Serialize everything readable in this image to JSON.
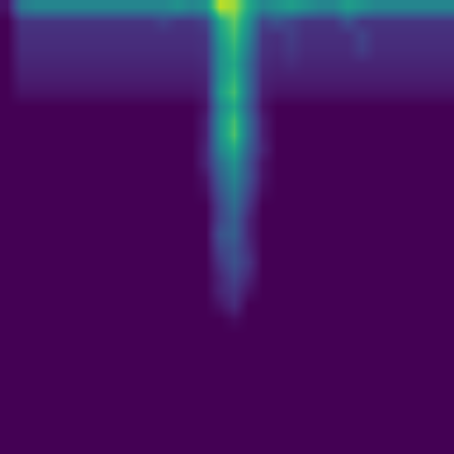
{
  "chart_data": {
    "type": "heatmap",
    "color": "Viridis",
    "zlim": [
      0,
      1
    ],
    "tick_labels": false,
    "z": [
      [
        0.05,
        0.4,
        0.45,
        0.45,
        0.45,
        0.45,
        0.45,
        0.45,
        0.45,
        0.45,
        0.45,
        0.45,
        0.5,
        0.45,
        0.5,
        0.9,
        0.85,
        0.6,
        0.45,
        0.5,
        0.55,
        0.5,
        0.45,
        0.45,
        0.55,
        0.5,
        0.45,
        0.45,
        0.45,
        0.45,
        0.45,
        0.45
      ],
      [
        0,
        0.15,
        0.15,
        0.15,
        0.15,
        0.15,
        0.15,
        0.15,
        0.15,
        0.15,
        0.15,
        0.2,
        0.15,
        0.15,
        0.2,
        0.6,
        0.75,
        0.5,
        0.2,
        0.25,
        0.2,
        0.15,
        0.15,
        0.15,
        0.25,
        0.15,
        0.15,
        0.15,
        0.15,
        0.15,
        0.15,
        0.15
      ],
      [
        0,
        0.13,
        0.13,
        0.13,
        0.13,
        0.13,
        0.13,
        0.13,
        0.13,
        0.13,
        0.13,
        0.13,
        0.13,
        0.13,
        0.15,
        0.55,
        0.7,
        0.45,
        0.15,
        0.13,
        0.18,
        0.13,
        0.13,
        0.13,
        0.13,
        0.2,
        0.13,
        0.13,
        0.13,
        0.13,
        0.13,
        0.13
      ],
      [
        0,
        0.12,
        0.12,
        0.12,
        0.12,
        0.12,
        0.12,
        0.12,
        0.12,
        0.12,
        0.12,
        0.12,
        0.12,
        0.12,
        0.14,
        0.5,
        0.65,
        0.4,
        0.14,
        0.12,
        0.16,
        0.12,
        0.12,
        0.12,
        0.12,
        0.18,
        0.12,
        0.12,
        0.12,
        0.12,
        0.12,
        0.12
      ],
      [
        0,
        0.1,
        0.1,
        0.1,
        0.1,
        0.1,
        0.1,
        0.1,
        0.1,
        0.1,
        0.1,
        0.1,
        0.1,
        0.1,
        0.12,
        0.5,
        0.6,
        0.35,
        0.12,
        0.1,
        0.12,
        0.1,
        0.1,
        0.1,
        0.1,
        0.1,
        0.1,
        0.1,
        0.1,
        0.1,
        0.1,
        0.1
      ],
      [
        0,
        0.08,
        0.08,
        0.08,
        0.08,
        0.08,
        0.08,
        0.08,
        0.08,
        0.08,
        0.08,
        0.08,
        0.08,
        0.08,
        0.1,
        0.5,
        0.65,
        0.35,
        0.1,
        0.08,
        0.08,
        0.08,
        0.08,
        0.08,
        0.08,
        0.08,
        0.08,
        0.08,
        0.08,
        0.08,
        0.08,
        0.08
      ],
      [
        0,
        0.05,
        0.05,
        0.05,
        0.05,
        0.05,
        0.05,
        0.05,
        0.05,
        0.05,
        0.05,
        0.05,
        0.05,
        0.05,
        0.08,
        0.55,
        0.7,
        0.35,
        0.08,
        0.05,
        0.05,
        0.05,
        0.05,
        0.05,
        0.05,
        0.05,
        0.05,
        0.05,
        0.05,
        0.05,
        0.05,
        0.05
      ],
      [
        0,
        0,
        0,
        0,
        0,
        0,
        0,
        0,
        0,
        0,
        0,
        0,
        0,
        0,
        0.05,
        0.45,
        0.6,
        0.3,
        0.05,
        0,
        0,
        0,
        0,
        0,
        0,
        0,
        0,
        0,
        0,
        0,
        0,
        0
      ],
      [
        0,
        0,
        0,
        0,
        0,
        0,
        0,
        0,
        0,
        0,
        0,
        0,
        0,
        0,
        0.08,
        0.5,
        0.7,
        0.35,
        0.08,
        0,
        0,
        0,
        0,
        0,
        0,
        0,
        0,
        0,
        0,
        0,
        0,
        0
      ],
      [
        0,
        0,
        0,
        0,
        0,
        0,
        0,
        0,
        0,
        0,
        0,
        0,
        0,
        0,
        0.08,
        0.5,
        0.72,
        0.35,
        0.08,
        0,
        0,
        0,
        0,
        0,
        0,
        0,
        0,
        0,
        0,
        0,
        0,
        0
      ],
      [
        0,
        0,
        0,
        0,
        0,
        0,
        0,
        0,
        0,
        0,
        0,
        0,
        0,
        0,
        0.1,
        0.45,
        0.6,
        0.3,
        0.1,
        0,
        0,
        0,
        0,
        0,
        0,
        0,
        0,
        0,
        0,
        0,
        0,
        0
      ],
      [
        0,
        0,
        0,
        0,
        0,
        0,
        0,
        0,
        0,
        0,
        0,
        0,
        0,
        0,
        0.1,
        0.35,
        0.5,
        0.25,
        0.05,
        0,
        0,
        0,
        0,
        0,
        0,
        0,
        0,
        0,
        0,
        0,
        0,
        0
      ],
      [
        0,
        0,
        0,
        0,
        0,
        0,
        0,
        0,
        0,
        0,
        0,
        0,
        0,
        0,
        0.05,
        0.3,
        0.45,
        0.25,
        0.05,
        0,
        0,
        0,
        0,
        0,
        0,
        0,
        0,
        0,
        0,
        0,
        0,
        0
      ],
      [
        0,
        0,
        0,
        0,
        0,
        0,
        0,
        0,
        0,
        0,
        0,
        0,
        0,
        0,
        0.03,
        0.25,
        0.4,
        0.2,
        0.03,
        0,
        0,
        0,
        0,
        0,
        0,
        0,
        0,
        0,
        0,
        0,
        0,
        0
      ],
      [
        0,
        0,
        0,
        0,
        0,
        0,
        0,
        0,
        0,
        0,
        0,
        0,
        0,
        0,
        0,
        0.2,
        0.35,
        0.15,
        0,
        0,
        0,
        0,
        0,
        0,
        0,
        0,
        0,
        0,
        0,
        0,
        0,
        0
      ],
      [
        0,
        0,
        0,
        0,
        0,
        0,
        0,
        0,
        0,
        0,
        0,
        0,
        0,
        0,
        0,
        0.2,
        0.3,
        0.1,
        0,
        0,
        0,
        0,
        0,
        0,
        0,
        0,
        0,
        0,
        0,
        0,
        0,
        0
      ],
      [
        0,
        0,
        0,
        0,
        0,
        0,
        0,
        0,
        0,
        0,
        0,
        0,
        0,
        0,
        0,
        0.25,
        0.3,
        0.1,
        0,
        0,
        0,
        0,
        0,
        0,
        0,
        0,
        0,
        0,
        0,
        0,
        0,
        0
      ],
      [
        0,
        0,
        0,
        0,
        0,
        0,
        0,
        0,
        0,
        0,
        0,
        0,
        0,
        0,
        0,
        0.2,
        0.25,
        0.12,
        0,
        0,
        0,
        0,
        0,
        0,
        0,
        0,
        0,
        0,
        0,
        0,
        0,
        0
      ],
      [
        0,
        0,
        0,
        0,
        0,
        0,
        0,
        0,
        0,
        0,
        0,
        0,
        0,
        0,
        0,
        0.15,
        0.25,
        0.15,
        0,
        0,
        0,
        0,
        0,
        0,
        0,
        0,
        0,
        0,
        0,
        0,
        0,
        0
      ],
      [
        0,
        0,
        0,
        0,
        0,
        0,
        0,
        0,
        0,
        0,
        0,
        0,
        0,
        0,
        0,
        0.1,
        0.2,
        0.1,
        0,
        0,
        0,
        0,
        0,
        0,
        0,
        0,
        0,
        0,
        0,
        0,
        0,
        0
      ],
      [
        0,
        0,
        0,
        0,
        0,
        0,
        0,
        0,
        0,
        0,
        0,
        0,
        0,
        0,
        0,
        0.1,
        0.15,
        0.05,
        0,
        0,
        0,
        0,
        0,
        0,
        0,
        0,
        0,
        0,
        0,
        0,
        0,
        0
      ],
      [
        0,
        0,
        0,
        0,
        0,
        0,
        0,
        0,
        0,
        0,
        0,
        0,
        0,
        0,
        0,
        0.05,
        0.12,
        0,
        0,
        0,
        0,
        0,
        0,
        0,
        0,
        0,
        0,
        0,
        0,
        0,
        0,
        0
      ],
      [
        0,
        0,
        0,
        0,
        0,
        0,
        0,
        0,
        0,
        0,
        0,
        0,
        0,
        0,
        0,
        0,
        0.03,
        0,
        0,
        0,
        0,
        0,
        0,
        0,
        0,
        0,
        0,
        0,
        0,
        0,
        0,
        0
      ],
      [
        0,
        0,
        0,
        0,
        0,
        0,
        0,
        0,
        0,
        0,
        0,
        0,
        0,
        0,
        0,
        0,
        0,
        0,
        0,
        0,
        0,
        0,
        0,
        0,
        0,
        0,
        0,
        0,
        0,
        0,
        0,
        0
      ],
      [
        0,
        0,
        0,
        0,
        0,
        0,
        0,
        0,
        0,
        0,
        0,
        0,
        0,
        0,
        0,
        0,
        0,
        0,
        0,
        0,
        0,
        0,
        0,
        0,
        0,
        0,
        0,
        0,
        0,
        0,
        0,
        0
      ],
      [
        0,
        0,
        0,
        0,
        0,
        0,
        0,
        0,
        0,
        0,
        0,
        0,
        0,
        0,
        0,
        0,
        0,
        0,
        0,
        0,
        0,
        0,
        0,
        0,
        0,
        0,
        0,
        0,
        0,
        0,
        0,
        0
      ],
      [
        0,
        0,
        0,
        0,
        0,
        0,
        0,
        0,
        0,
        0,
        0,
        0,
        0,
        0,
        0,
        0,
        0,
        0,
        0,
        0,
        0,
        0,
        0,
        0,
        0,
        0,
        0,
        0,
        0,
        0,
        0,
        0
      ],
      [
        0,
        0,
        0,
        0,
        0,
        0,
        0,
        0,
        0,
        0,
        0,
        0,
        0,
        0,
        0,
        0,
        0,
        0,
        0,
        0,
        0,
        0,
        0,
        0,
        0,
        0,
        0,
        0,
        0,
        0,
        0,
        0
      ],
      [
        0,
        0,
        0,
        0,
        0,
        0,
        0,
        0,
        0,
        0,
        0,
        0,
        0,
        0,
        0,
        0,
        0,
        0,
        0,
        0,
        0,
        0,
        0,
        0,
        0,
        0,
        0,
        0,
        0,
        0,
        0,
        0
      ],
      [
        0,
        0,
        0,
        0,
        0,
        0,
        0,
        0,
        0,
        0,
        0,
        0,
        0,
        0,
        0,
        0,
        0,
        0,
        0,
        0,
        0,
        0,
        0,
        0,
        0,
        0,
        0,
        0,
        0,
        0,
        0,
        0
      ],
      [
        0,
        0,
        0,
        0,
        0,
        0,
        0,
        0,
        0,
        0,
        0,
        0,
        0,
        0,
        0,
        0,
        0,
        0,
        0,
        0,
        0,
        0,
        0,
        0,
        0,
        0,
        0,
        0,
        0,
        0,
        0,
        0
      ],
      [
        0,
        0,
        0,
        0,
        0,
        0,
        0,
        0,
        0,
        0,
        0,
        0,
        0,
        0,
        0,
        0,
        0,
        0,
        0,
        0,
        0,
        0,
        0,
        0,
        0,
        0,
        0,
        0,
        0,
        0,
        0,
        0
      ]
    ]
  }
}
